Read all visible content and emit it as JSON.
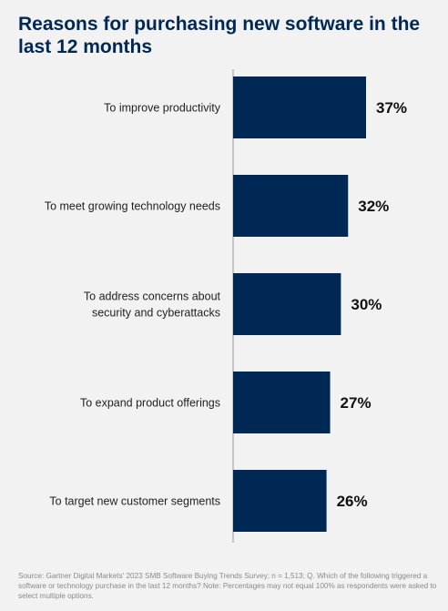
{
  "chart_data": {
    "type": "bar",
    "orientation": "horizontal",
    "title": "Reasons for purchasing new software in the last 12 months",
    "categories": [
      [
        "To improve productivity"
      ],
      [
        "To meet growing technology needs"
      ],
      [
        "To address concerns about",
        "security and cyberattacks"
      ],
      [
        "To expand product offerings"
      ],
      [
        "To target new customer segments"
      ]
    ],
    "values": [
      37,
      32,
      30,
      27,
      26
    ],
    "value_labels": [
      "37%",
      "32%",
      "30%",
      "27%",
      "26%"
    ],
    "unit": "%",
    "xlim": [
      0,
      100
    ],
    "grid": false,
    "legend": "none",
    "source": "Source: Gartner Digital Markets' 2023 SMB Software Buying Trends Survey; n = 1,513; Q. Which of the following triggered a software or technology purchase in the last 12 months? Note: Percentages may not equal 100% as respondents were asked to select multiple options."
  },
  "colors": {
    "bar": "#002855",
    "title": "#002855",
    "axis_line": "#9a9a9a"
  }
}
